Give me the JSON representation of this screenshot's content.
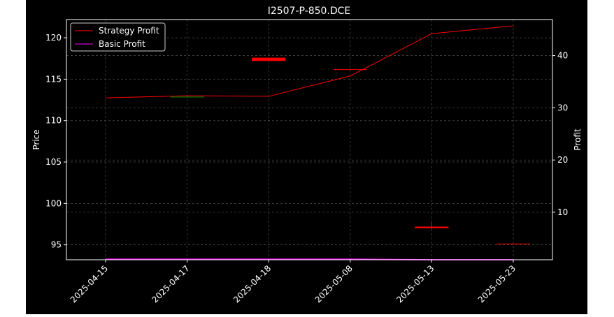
{
  "chart_data": {
    "type": "candlestick+line",
    "title": "I2507-P-850.DCE",
    "categories": [
      "2025-04-15",
      "2025-04-17",
      "2025-04-18",
      "2025-05-08",
      "2025-05-13",
      "2025-05-23"
    ],
    "left_axis": {
      "label": "Price",
      "ylim": [
        93.2,
        122.2
      ],
      "ticks": [
        95,
        100,
        105,
        110,
        115,
        120
      ]
    },
    "right_axis": {
      "label": "Profit",
      "ylim": [
        0.9,
        46.9
      ],
      "ticks": [
        10,
        20,
        30,
        40
      ]
    },
    "grid": true,
    "legend": {
      "position": "top-left"
    },
    "candles": [
      {
        "x": "2025-04-15",
        "open": null,
        "high": null,
        "low": null,
        "close": null,
        "color": "#ff0000"
      },
      {
        "x": "2025-04-17",
        "open": 112.9,
        "high": 112.95,
        "low": 112.75,
        "close": 112.8,
        "color": "#008000"
      },
      {
        "x": "2025-04-18",
        "open": 117.6,
        "high": 117.6,
        "low": 117.2,
        "close": 117.2,
        "color": "#ff0000"
      },
      {
        "x": "2025-05-08",
        "open": 116.2,
        "high": 116.25,
        "low": 116.15,
        "close": 116.2,
        "color": "#ff0000"
      },
      {
        "x": "2025-05-13",
        "open": 97.2,
        "high": 97.7,
        "low": 96.9,
        "close": 97.0,
        "color": "#ff0000"
      },
      {
        "x": "2025-05-23",
        "open": 95.15,
        "high": 95.2,
        "low": 95.1,
        "close": 95.15,
        "color": "#ff0000"
      }
    ],
    "series": [
      {
        "name": "Strategy Profit",
        "axis": "right",
        "color": "#ff0000",
        "values": [
          31.9,
          32.3,
          32.2,
          36.1,
          44.2,
          45.7
        ]
      },
      {
        "name": "Basic Profit",
        "axis": "right",
        "color": "#ff00ff",
        "values": [
          1.0,
          1.0,
          1.0,
          1.0,
          0.9,
          0.9
        ]
      }
    ]
  }
}
